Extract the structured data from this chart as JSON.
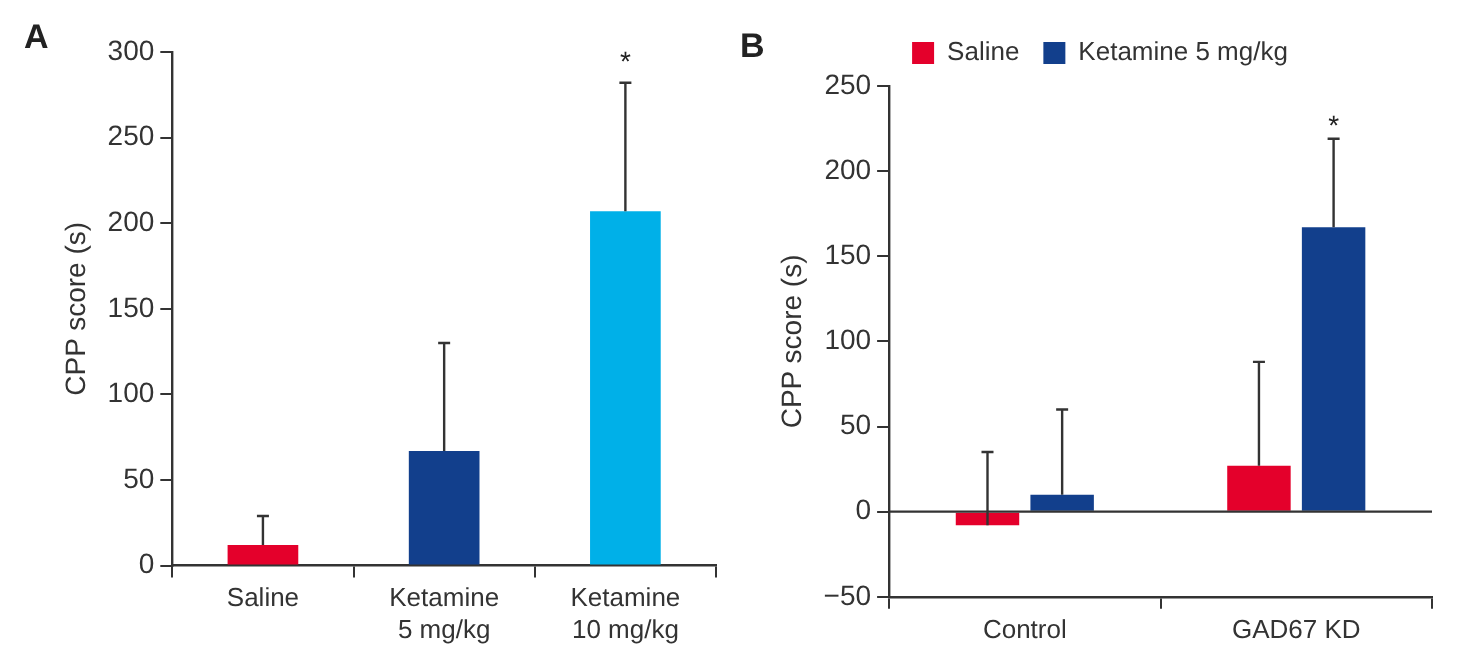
{
  "chart_data": [
    {
      "type": "bar",
      "title": "A",
      "ylabel": "CPP score (s)",
      "categories": [
        "Saline",
        "Ketamine\n5 mg/kg",
        "Ketamine\n10 mg/kg"
      ],
      "series": [
        {
          "colors": [
            "#e4002b",
            "#123f8c",
            "#00b0e8"
          ],
          "values": [
            12,
            67,
            207
          ],
          "errors": [
            [
              12,
              29
            ],
            [
              67,
              130
            ],
            [
              207,
              282
            ]
          ]
        }
      ],
      "ylim": [
        0,
        300
      ],
      "yticks": [
        0,
        50,
        100,
        150,
        200,
        250,
        300
      ],
      "grid": false,
      "legend": false,
      "annotations": [
        "*"
      ]
    },
    {
      "type": "bar",
      "title": "B",
      "ylabel": "CPP score (s)",
      "categories": [
        "Control",
        "GAD67 KD"
      ],
      "series": [
        {
          "name": "Saline",
          "color": "#e4002b",
          "values": [
            -8,
            27
          ],
          "errors": [
            [
              -8,
              35
            ],
            [
              27,
              88
            ]
          ]
        },
        {
          "name": "Ketamine 5 mg/kg",
          "color": "#123f8c",
          "values": [
            10,
            167
          ],
          "errors": [
            [
              10,
              60
            ],
            [
              167,
              219
            ]
          ]
        }
      ],
      "ylim": [
        -50,
        250
      ],
      "yticks": [
        -50,
        0,
        50,
        100,
        150,
        200,
        250
      ],
      "grid": false,
      "legend": "top",
      "ref_lines": [
        {
          "axis": "y",
          "value": 0
        }
      ],
      "annotations": [
        "*"
      ]
    }
  ]
}
